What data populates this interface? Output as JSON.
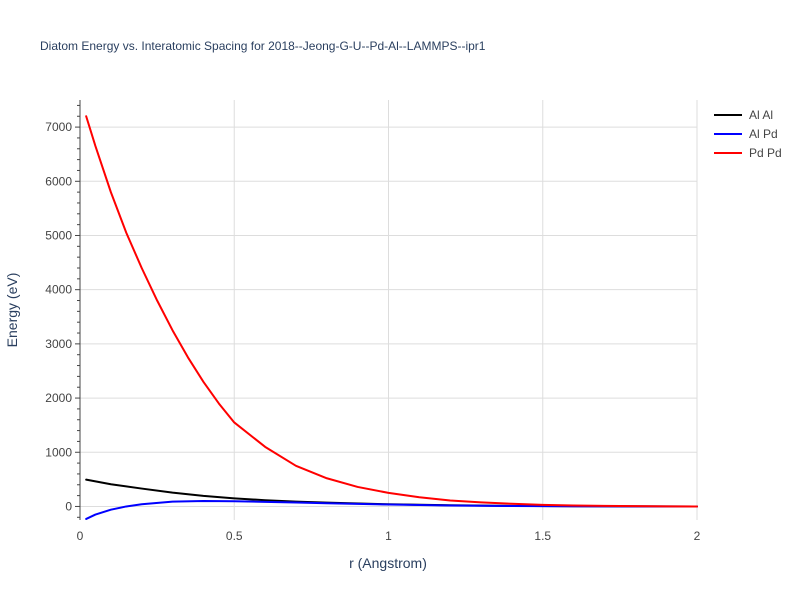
{
  "chart_data": {
    "type": "line",
    "title": "Diatom Energy vs. Interatomic Spacing for 2018--Jeong-G-U--Pd-Al--LAMMPS--ipr1",
    "xlabel": "r (Angstrom)",
    "ylabel": "Energy (eV)",
    "xlim": [
      0,
      2
    ],
    "ylim": [
      -250,
      7500
    ],
    "x_ticks": [
      0,
      0.5,
      1,
      1.5,
      2
    ],
    "x_tick_labels": [
      "0",
      "0.5",
      "1",
      "1.5",
      "2"
    ],
    "y_ticks": [
      0,
      1000,
      2000,
      3000,
      4000,
      5000,
      6000,
      7000
    ],
    "y_tick_labels": [
      "0",
      "1000",
      "2000",
      "3000",
      "4000",
      "5000",
      "6000",
      "7000"
    ],
    "grid": true,
    "legend_position": "top-right",
    "series": [
      {
        "name": "Al Al",
        "color": "#000000",
        "x": [
          0.02,
          0.1,
          0.2,
          0.3,
          0.4,
          0.5,
          0.6,
          0.7,
          0.8,
          1.0,
          1.2,
          1.4,
          1.6,
          1.8,
          2.0
        ],
        "y": [
          495,
          410,
          330,
          255,
          195,
          150,
          115,
          90,
          70,
          40,
          22,
          10,
          4,
          1,
          0
        ]
      },
      {
        "name": "Al Pd",
        "color": "#0000ff",
        "x": [
          0.02,
          0.05,
          0.1,
          0.15,
          0.2,
          0.3,
          0.4,
          0.5,
          0.6,
          0.7,
          0.8,
          1.0,
          1.2,
          1.4,
          1.6,
          1.8,
          2.0
        ],
        "y": [
          -230,
          -150,
          -60,
          0,
          40,
          90,
          100,
          95,
          85,
          72,
          58,
          35,
          18,
          8,
          3,
          1,
          0
        ]
      },
      {
        "name": "Pd Pd",
        "color": "#ff0000",
        "x": [
          0.02,
          0.05,
          0.1,
          0.15,
          0.2,
          0.25,
          0.3,
          0.35,
          0.4,
          0.45,
          0.5,
          0.6,
          0.7,
          0.8,
          0.9,
          1.0,
          1.1,
          1.2,
          1.3,
          1.4,
          1.5,
          1.6,
          1.7,
          1.8,
          1.9,
          2.0
        ],
        "y": [
          7200,
          6650,
          5800,
          5050,
          4400,
          3800,
          3250,
          2750,
          2300,
          1900,
          1550,
          1100,
          750,
          520,
          360,
          250,
          170,
          110,
          75,
          50,
          30,
          18,
          10,
          5,
          2,
          0
        ]
      }
    ]
  }
}
